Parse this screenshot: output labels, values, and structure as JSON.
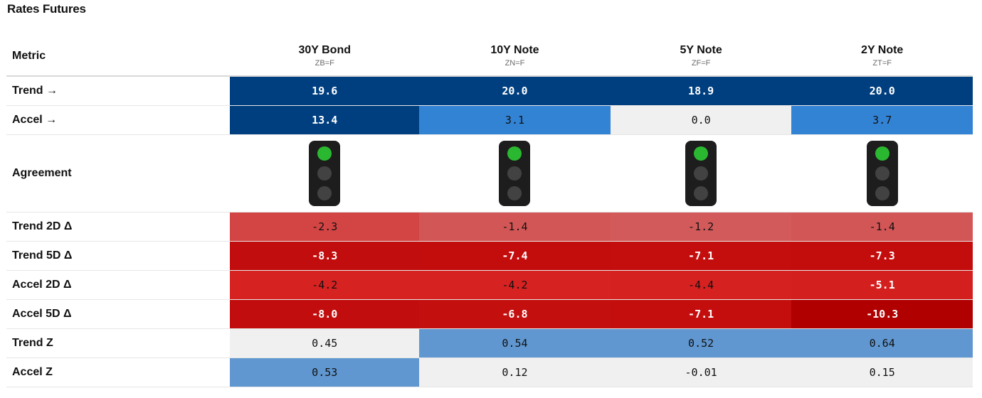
{
  "title": "Rates Futures",
  "header": {
    "metric_label": "Metric",
    "columns": [
      {
        "name": "30Y Bond",
        "ticker": "ZB=F"
      },
      {
        "name": "10Y Note",
        "ticker": "ZN=F"
      },
      {
        "name": "5Y Note",
        "ticker": "ZF=F"
      },
      {
        "name": "2Y Note",
        "ticker": "ZT=F"
      }
    ]
  },
  "rows": [
    {
      "label": "Trend →",
      "values": [
        "19.6",
        "20.0",
        "18.9",
        "20.0"
      ],
      "bg": [
        "#003f7f",
        "#003f7f",
        "#003f7f",
        "#003f7f"
      ],
      "fg": [
        "#ffffff",
        "#ffffff",
        "#ffffff",
        "#ffffff"
      ]
    },
    {
      "label": "Accel →",
      "values": [
        "13.4",
        "3.1",
        "0.0",
        "3.7"
      ],
      "bg": [
        "#003f7f",
        "#3383d5",
        "#f0f0f0",
        "#3383d5"
      ],
      "fg": [
        "#ffffff",
        "#111111",
        "#111111",
        "#111111"
      ]
    },
    {
      "label": "Agreement",
      "type": "lights",
      "lights": [
        {
          "top": "green",
          "mid": "off",
          "bot": "off"
        },
        {
          "top": "green",
          "mid": "off",
          "bot": "off"
        },
        {
          "top": "green",
          "mid": "off",
          "bot": "off"
        },
        {
          "top": "green",
          "mid": "off",
          "bot": "off"
        }
      ]
    },
    {
      "label": "Trend 2D Δ",
      "values": [
        "-2.3",
        "-1.4",
        "-1.2",
        "-1.4"
      ],
      "bg": [
        "#d34545",
        "#d35656",
        "#d35a5a",
        "#d35656"
      ],
      "fg": [
        "#111111",
        "#111111",
        "#111111",
        "#111111"
      ]
    },
    {
      "label": "Trend 5D Δ",
      "values": [
        "-8.3",
        "-7.4",
        "-7.1",
        "-7.3"
      ],
      "bg": [
        "#c10d0d",
        "#c30d0d",
        "#c40e0e",
        "#c30d0d"
      ],
      "fg": [
        "#ffffff",
        "#ffffff",
        "#ffffff",
        "#ffffff"
      ]
    },
    {
      "label": "Accel 2D Δ",
      "values": [
        "-4.2",
        "-4.2",
        "-4.4",
        "-5.1"
      ],
      "bg": [
        "#d72222",
        "#d72222",
        "#d62121",
        "#d41f1f"
      ],
      "fg": [
        "#111111",
        "#111111",
        "#111111",
        "#ffffff"
      ]
    },
    {
      "label": "Accel 5D Δ",
      "values": [
        "-8.0",
        "-6.8",
        "-7.1",
        "-10.3"
      ],
      "bg": [
        "#c10d0d",
        "#c40f0f",
        "#c40e0e",
        "#b00000"
      ],
      "fg": [
        "#ffffff",
        "#ffffff",
        "#ffffff",
        "#ffffff"
      ]
    },
    {
      "label": "Trend Z",
      "values": [
        "0.45",
        "0.54",
        "0.52",
        "0.64"
      ],
      "bg": [
        "#f0f0f0",
        "#6097d0",
        "#6097d0",
        "#6097d0"
      ],
      "fg": [
        "#111111",
        "#111111",
        "#111111",
        "#111111"
      ]
    },
    {
      "label": "Accel Z",
      "values": [
        "0.53",
        "0.12",
        "-0.01",
        "0.15"
      ],
      "bg": [
        "#6097d0",
        "#f0f0f0",
        "#f0f0f0",
        "#f0f0f0"
      ],
      "fg": [
        "#111111",
        "#111111",
        "#111111",
        "#111111"
      ]
    }
  ],
  "colors": {
    "lamp_green": "#2bb831",
    "lamp_off": "#424242",
    "light_body": "#1d1d1d"
  }
}
